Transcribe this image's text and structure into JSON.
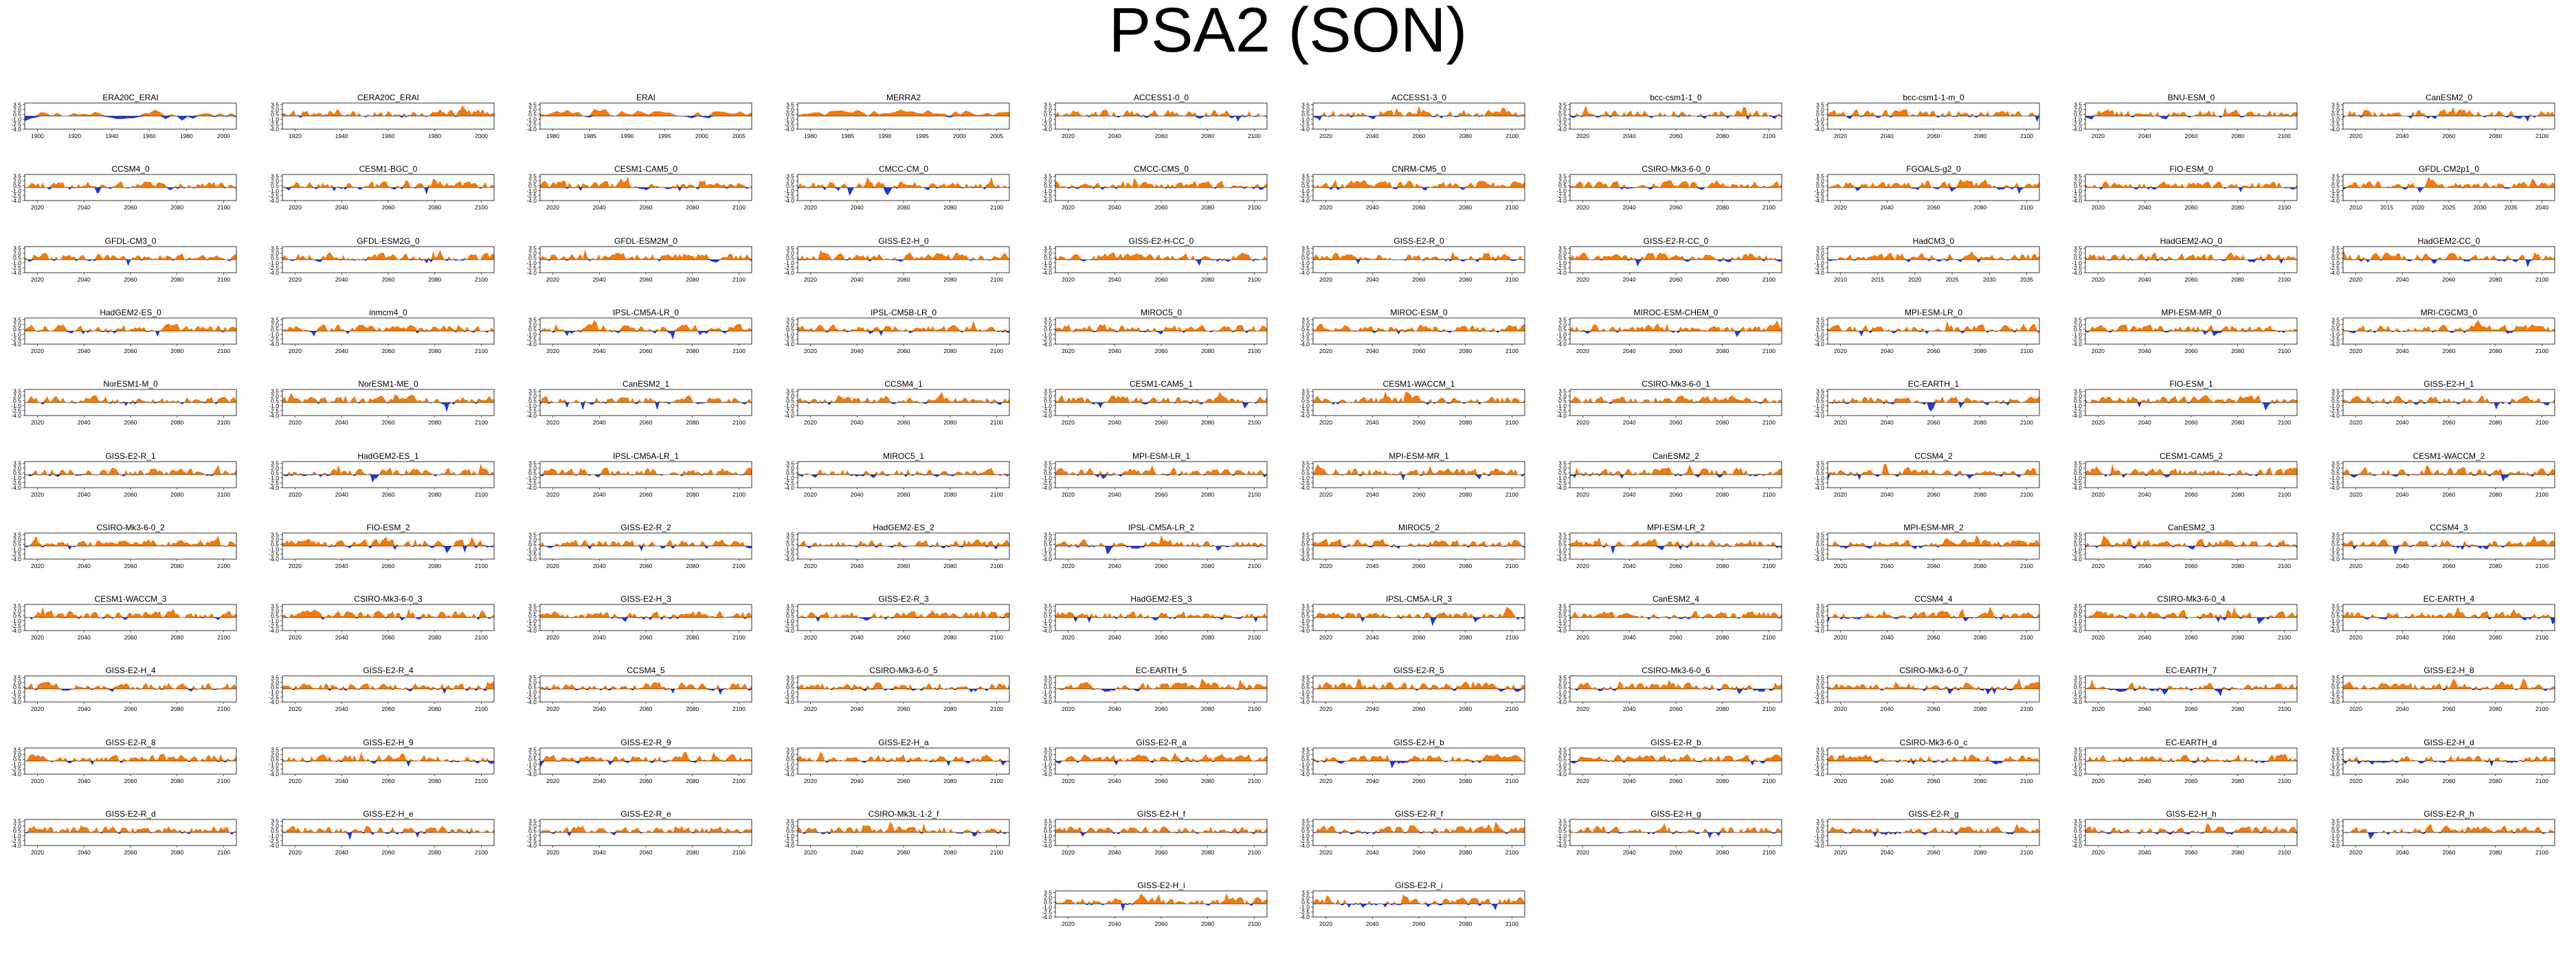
{
  "title": "PSA2 (SON)",
  "colors": {
    "positive": "#f07c10",
    "negative": "#1f39d6",
    "axis": "#000000"
  },
  "chart_data": {
    "type": "area",
    "ylim": [
      -4.0,
      4.0
    ],
    "ytick_labels": [
      "-4.0",
      "-2.5",
      "-1.0",
      "0.5",
      "2.0",
      "3.5"
    ],
    "panels": [
      {
        "title": "ERA20C_ERAI",
        "xticks": [
          "1900",
          "1920",
          "1940",
          "1960",
          "1980",
          "2000"
        ]
      },
      {
        "title": "CERA20C_ERAI",
        "xticks": [
          "1920",
          "1940",
          "1960",
          "1980",
          "2000"
        ]
      },
      {
        "title": "ERAI",
        "xticks": [
          "1980",
          "1985",
          "1990",
          "1995",
          "2000",
          "2005"
        ]
      },
      {
        "title": "MERRA2",
        "xticks": [
          "1980",
          "1985",
          "1990",
          "1995",
          "2000",
          "2005"
        ]
      },
      {
        "title": "ACCESS1-0_0",
        "xticks": [
          "2020",
          "2040",
          "2060",
          "2080",
          "2100"
        ]
      },
      {
        "title": "ACCESS1-3_0",
        "xticks": [
          "2020",
          "2040",
          "2060",
          "2080",
          "2100"
        ]
      },
      {
        "title": "bcc-csm1-1_0",
        "xticks": [
          "2020",
          "2040",
          "2060",
          "2080",
          "2100"
        ]
      },
      {
        "title": "bcc-csm1-1-m_0",
        "xticks": [
          "2020",
          "2040",
          "2060",
          "2080",
          "2100"
        ]
      },
      {
        "title": "BNU-ESM_0",
        "xticks": [
          "2020",
          "2040",
          "2060",
          "2080",
          "2100"
        ]
      },
      {
        "title": "CanESM2_0",
        "xticks": [
          "2020",
          "2040",
          "2060",
          "2080",
          "2100"
        ]
      },
      {
        "title": "CCSM4_0",
        "xticks": [
          "2020",
          "2040",
          "2060",
          "2080",
          "2100"
        ]
      },
      {
        "title": "CESM1-BGC_0",
        "xticks": [
          "2020",
          "2040",
          "2060",
          "2080",
          "2100"
        ]
      },
      {
        "title": "CESM1-CAM5_0",
        "xticks": [
          "2020",
          "2040",
          "2060",
          "2080",
          "2100"
        ]
      },
      {
        "title": "CMCC-CM_0",
        "xticks": [
          "2020",
          "2040",
          "2060",
          "2080",
          "2100"
        ]
      },
      {
        "title": "CMCC-CMS_0",
        "xticks": [
          "2020",
          "2040",
          "2060",
          "2080",
          "2100"
        ]
      },
      {
        "title": "CNRM-CM5_0",
        "xticks": [
          "2020",
          "2040",
          "2060",
          "2080",
          "2100"
        ]
      },
      {
        "title": "CSIRO-Mk3-6-0_0",
        "xticks": [
          "2020",
          "2040",
          "2060",
          "2080",
          "2100"
        ]
      },
      {
        "title": "FGOALS-g2_0",
        "xticks": [
          "2020",
          "2040",
          "2060",
          "2080",
          "2100"
        ]
      },
      {
        "title": "FIO-ESM_0",
        "xticks": [
          "2020",
          "2040",
          "2060",
          "2080",
          "2100"
        ]
      },
      {
        "title": "GFDL-CM2p1_0",
        "xticks": [
          "2010",
          "2015",
          "2020",
          "2025",
          "2030",
          "2035",
          "2040"
        ]
      },
      {
        "title": "GFDL-CM3_0",
        "xticks": [
          "2020",
          "2040",
          "2060",
          "2080",
          "2100"
        ]
      },
      {
        "title": "GFDL-ESM2G_0",
        "xticks": [
          "2020",
          "2040",
          "2060",
          "2080",
          "2100"
        ]
      },
      {
        "title": "GFDL-ESM2M_0",
        "xticks": [
          "2020",
          "2040",
          "2060",
          "2080",
          "2100"
        ]
      },
      {
        "title": "GISS-E2-H_0",
        "xticks": [
          "2020",
          "2040",
          "2060",
          "2080",
          "2100"
        ]
      },
      {
        "title": "GISS-E2-H-CC_0",
        "xticks": [
          "2020",
          "2040",
          "2060",
          "2080",
          "2100"
        ]
      },
      {
        "title": "GISS-E2-R_0",
        "xticks": [
          "2020",
          "2040",
          "2060",
          "2080",
          "2100"
        ]
      },
      {
        "title": "GISS-E2-R-CC_0",
        "xticks": [
          "2020",
          "2040",
          "2060",
          "2080",
          "2100"
        ]
      },
      {
        "title": "HadCM3_0",
        "xticks": [
          "2010",
          "2015",
          "2020",
          "2025",
          "2030",
          "2035"
        ]
      },
      {
        "title": "HadGEM2-AO_0",
        "xticks": [
          "2020",
          "2040",
          "2060",
          "2080",
          "2100"
        ]
      },
      {
        "title": "HadGEM2-CC_0",
        "xticks": [
          "2020",
          "2040",
          "2060",
          "2080",
          "2100"
        ]
      },
      {
        "title": "HadGEM2-ES_0",
        "xticks": [
          "2020",
          "2040",
          "2060",
          "2080",
          "2100"
        ]
      },
      {
        "title": "inmcm4_0",
        "xticks": [
          "2020",
          "2040",
          "2060",
          "2080",
          "2100"
        ]
      },
      {
        "title": "IPSL-CM5A-LR_0",
        "xticks": [
          "2020",
          "2040",
          "2060",
          "2080",
          "2100"
        ]
      },
      {
        "title": "IPSL-CM5B-LR_0",
        "xticks": [
          "2020",
          "2040",
          "2060",
          "2080",
          "2100"
        ]
      },
      {
        "title": "MIROC5_0",
        "xticks": [
          "2020",
          "2040",
          "2060",
          "2080",
          "2100"
        ]
      },
      {
        "title": "MIROC-ESM_0",
        "xticks": [
          "2020",
          "2040",
          "2060",
          "2080",
          "2100"
        ]
      },
      {
        "title": "MIROC-ESM-CHEM_0",
        "xticks": [
          "2020",
          "2040",
          "2060",
          "2080",
          "2100"
        ]
      },
      {
        "title": "MPI-ESM-LR_0",
        "xticks": [
          "2020",
          "2040",
          "2060",
          "2080",
          "2100"
        ]
      },
      {
        "title": "MPI-ESM-MR_0",
        "xticks": [
          "2020",
          "2040",
          "2060",
          "2080",
          "2100"
        ]
      },
      {
        "title": "MRI-CGCM3_0",
        "xticks": [
          "2020",
          "2040",
          "2060",
          "2080",
          "2100"
        ]
      },
      {
        "title": "NorESM1-M_0",
        "xticks": [
          "2020",
          "2040",
          "2060",
          "2080",
          "2100"
        ]
      },
      {
        "title": "NorESM1-ME_0",
        "xticks": [
          "2020",
          "2040",
          "2060",
          "2080",
          "2100"
        ]
      },
      {
        "title": "CanESM2_1",
        "xticks": [
          "2020",
          "2040",
          "2060",
          "2080",
          "2100"
        ]
      },
      {
        "title": "CCSM4_1",
        "xticks": [
          "2020",
          "2040",
          "2060",
          "2080",
          "2100"
        ]
      },
      {
        "title": "CESM1-CAM5_1",
        "xticks": [
          "2020",
          "2040",
          "2060",
          "2080",
          "2100"
        ]
      },
      {
        "title": "CESM1-WACCM_1",
        "xticks": [
          "2020",
          "2040",
          "2060",
          "2080",
          "2100"
        ]
      },
      {
        "title": "CSIRO-Mk3-6-0_1",
        "xticks": [
          "2020",
          "2040",
          "2060",
          "2080",
          "2100"
        ]
      },
      {
        "title": "EC-EARTH_1",
        "xticks": [
          "2020",
          "2040",
          "2060",
          "2080",
          "2100"
        ]
      },
      {
        "title": "FIO-ESM_1",
        "xticks": [
          "2020",
          "2040",
          "2060",
          "2080",
          "2100"
        ]
      },
      {
        "title": "GISS-E2-H_1",
        "xticks": [
          "2020",
          "2040",
          "2060",
          "2080",
          "2100"
        ]
      },
      {
        "title": "GISS-E2-R_1",
        "xticks": [
          "2020",
          "2040",
          "2060",
          "2080",
          "2100"
        ]
      },
      {
        "title": "HadGEM2-ES_1",
        "xticks": [
          "2020",
          "2040",
          "2060",
          "2080",
          "2100"
        ]
      },
      {
        "title": "IPSL-CM5A-LR_1",
        "xticks": [
          "2020",
          "2040",
          "2060",
          "2080",
          "2100"
        ]
      },
      {
        "title": "MIROC5_1",
        "xticks": [
          "2020",
          "2040",
          "2060",
          "2080",
          "2100"
        ]
      },
      {
        "title": "MPI-ESM-LR_1",
        "xticks": [
          "2020",
          "2040",
          "2060",
          "2080",
          "2100"
        ]
      },
      {
        "title": "MPI-ESM-MR_1",
        "xticks": [
          "2020",
          "2040",
          "2060",
          "2080",
          "2100"
        ]
      },
      {
        "title": "CanESM2_2",
        "xticks": [
          "2020",
          "2040",
          "2060",
          "2080",
          "2100"
        ]
      },
      {
        "title": "CCSM4_2",
        "xticks": [
          "2020",
          "2040",
          "2060",
          "2080",
          "2100"
        ]
      },
      {
        "title": "CESM1-CAM5_2",
        "xticks": [
          "2020",
          "2040",
          "2060",
          "2080",
          "2100"
        ]
      },
      {
        "title": "CESM1-WACCM_2",
        "xticks": [
          "2020",
          "2040",
          "2060",
          "2080",
          "2100"
        ]
      },
      {
        "title": "CSIRO-Mk3-6-0_2",
        "xticks": [
          "2020",
          "2040",
          "2060",
          "2080",
          "2100"
        ]
      },
      {
        "title": "FIO-ESM_2",
        "xticks": [
          "2020",
          "2040",
          "2060",
          "2080",
          "2100"
        ]
      },
      {
        "title": "GISS-E2-R_2",
        "xticks": [
          "2020",
          "2040",
          "2060",
          "2080",
          "2100"
        ]
      },
      {
        "title": "HadGEM2-ES_2",
        "xticks": [
          "2020",
          "2040",
          "2060",
          "2080",
          "2100"
        ]
      },
      {
        "title": "IPSL-CM5A-LR_2",
        "xticks": [
          "2020",
          "2040",
          "2060",
          "2080",
          "2100"
        ]
      },
      {
        "title": "MIROC5_2",
        "xticks": [
          "2020",
          "2040",
          "2060",
          "2080",
          "2100"
        ]
      },
      {
        "title": "MPI-ESM-LR_2",
        "xticks": [
          "2020",
          "2040",
          "2060",
          "2080",
          "2100"
        ]
      },
      {
        "title": "MPI-ESM-MR_2",
        "xticks": [
          "2020",
          "2040",
          "2060",
          "2080",
          "2100"
        ]
      },
      {
        "title": "CanESM2_3",
        "xticks": [
          "2020",
          "2040",
          "2060",
          "2080",
          "2100"
        ]
      },
      {
        "title": "CCSM4_3",
        "xticks": [
          "2020",
          "2040",
          "2060",
          "2080",
          "2100"
        ]
      },
      {
        "title": "CESM1-WACCM_3",
        "xticks": [
          "2020",
          "2040",
          "2060",
          "2080",
          "2100"
        ]
      },
      {
        "title": "CSIRO-Mk3-6-0_3",
        "xticks": [
          "2020",
          "2040",
          "2060",
          "2080",
          "2100"
        ]
      },
      {
        "title": "GISS-E2-H_3",
        "xticks": [
          "2020",
          "2040",
          "2060",
          "2080",
          "2100"
        ]
      },
      {
        "title": "GISS-E2-R_3",
        "xticks": [
          "2020",
          "2040",
          "2060",
          "2080",
          "2100"
        ]
      },
      {
        "title": "HadGEM2-ES_3",
        "xticks": [
          "2020",
          "2040",
          "2060",
          "2080",
          "2100"
        ]
      },
      {
        "title": "IPSL-CM5A-LR_3",
        "xticks": [
          "2020",
          "2040",
          "2060",
          "2080",
          "2100"
        ]
      },
      {
        "title": "CanESM2_4",
        "xticks": [
          "2020",
          "2040",
          "2060",
          "2080",
          "2100"
        ]
      },
      {
        "title": "CCSM4_4",
        "xticks": [
          "2020",
          "2040",
          "2060",
          "2080",
          "2100"
        ]
      },
      {
        "title": "CSIRO-Mk3-6-0_4",
        "xticks": [
          "2020",
          "2040",
          "2060",
          "2080",
          "2100"
        ]
      },
      {
        "title": "EC-EARTH_4",
        "xticks": [
          "2020",
          "2040",
          "2060",
          "2080",
          "2100"
        ]
      },
      {
        "title": "GISS-E2-H_4",
        "xticks": [
          "2020",
          "2040",
          "2060",
          "2080",
          "2100"
        ]
      },
      {
        "title": "GISS-E2-R_4",
        "xticks": [
          "2020",
          "2040",
          "2060",
          "2080",
          "2100"
        ]
      },
      {
        "title": "CCSM4_5",
        "xticks": [
          "2020",
          "2040",
          "2060",
          "2080",
          "2100"
        ]
      },
      {
        "title": "CSIRO-Mk3-6-0_5",
        "xticks": [
          "2020",
          "2040",
          "2060",
          "2080",
          "2100"
        ]
      },
      {
        "title": "EC-EARTH_5",
        "xticks": [
          "2020",
          "2040",
          "2060",
          "2080",
          "2100"
        ]
      },
      {
        "title": "GISS-E2-R_5",
        "xticks": [
          "2020",
          "2040",
          "2060",
          "2080",
          "2100"
        ]
      },
      {
        "title": "CSIRO-Mk3-6-0_6",
        "xticks": [
          "2020",
          "2040",
          "2060",
          "2080",
          "2100"
        ]
      },
      {
        "title": "CSIRO-Mk3-6-0_7",
        "xticks": [
          "2020",
          "2040",
          "2060",
          "2080",
          "2100"
        ]
      },
      {
        "title": "EC-EARTH_7",
        "xticks": [
          "2020",
          "2040",
          "2060",
          "2080",
          "2100"
        ]
      },
      {
        "title": "GISS-E2-H_8",
        "xticks": [
          "2020",
          "2040",
          "2060",
          "2080",
          "2100"
        ]
      },
      {
        "title": "GISS-E2-R_8",
        "xticks": [
          "2020",
          "2040",
          "2060",
          "2080",
          "2100"
        ]
      },
      {
        "title": "GISS-E2-H_9",
        "xticks": [
          "2020",
          "2040",
          "2060",
          "2080",
          "2100"
        ]
      },
      {
        "title": "GISS-E2-R_9",
        "xticks": [
          "2020",
          "2040",
          "2060",
          "2080",
          "2100"
        ]
      },
      {
        "title": "GISS-E2-H_a",
        "xticks": [
          "2020",
          "2040",
          "2060",
          "2080",
          "2100"
        ]
      },
      {
        "title": "GISS-E2-R_a",
        "xticks": [
          "2020",
          "2040",
          "2060",
          "2080",
          "2100"
        ]
      },
      {
        "title": "GISS-E2-H_b",
        "xticks": [
          "2020",
          "2040",
          "2060",
          "2080",
          "2100"
        ]
      },
      {
        "title": "GISS-E2-R_b",
        "xticks": [
          "2020",
          "2040",
          "2060",
          "2080",
          "2100"
        ]
      },
      {
        "title": "CSIRO-Mk3-6-0_c",
        "xticks": [
          "2020",
          "2040",
          "2060",
          "2080",
          "2100"
        ]
      },
      {
        "title": "EC-EARTH_d",
        "xticks": [
          "2020",
          "2040",
          "2060",
          "2080",
          "2100"
        ]
      },
      {
        "title": "GISS-E2-H_d",
        "xticks": [
          "2020",
          "2040",
          "2060",
          "2080",
          "2100"
        ]
      },
      {
        "title": "GISS-E2-R_d",
        "xticks": [
          "2020",
          "2040",
          "2060",
          "2080",
          "2100"
        ]
      },
      {
        "title": "GISS-E2-H_e",
        "xticks": [
          "2020",
          "2040",
          "2060",
          "2080",
          "2100"
        ]
      },
      {
        "title": "GISS-E2-R_e",
        "xticks": [
          "2020",
          "2040",
          "2060",
          "2080",
          "2100"
        ]
      },
      {
        "title": "CSIRO-Mk3L-1-2_f",
        "xticks": [
          "2020",
          "2040",
          "2060",
          "2080",
          "2100"
        ]
      },
      {
        "title": "GISS-E2-H_f",
        "xticks": [
          "2020",
          "2040",
          "2060",
          "2080",
          "2100"
        ]
      },
      {
        "title": "GISS-E2-R_f",
        "xticks": [
          "2020",
          "2040",
          "2060",
          "2080",
          "2100"
        ]
      },
      {
        "title": "GISS-E2-H_g",
        "xticks": [
          "2020",
          "2040",
          "2060",
          "2080",
          "2100"
        ]
      },
      {
        "title": "GISS-E2-R_g",
        "xticks": [
          "2020",
          "2040",
          "2060",
          "2080",
          "2100"
        ]
      },
      {
        "title": "GISS-E2-H_h",
        "xticks": [
          "2020",
          "2040",
          "2060",
          "2080",
          "2100"
        ]
      },
      {
        "title": "GISS-E2-R_h",
        "xticks": [
          "2020",
          "2040",
          "2060",
          "2080",
          "2100"
        ]
      },
      {
        "title": "GISS-E2-H_i",
        "xticks": [
          "2020",
          "2040",
          "2060",
          "2080",
          "2100"
        ]
      },
      {
        "title": "GISS-E2-R_i",
        "xticks": [
          "2020",
          "2040",
          "2060",
          "2080",
          "2100"
        ]
      }
    ]
  }
}
